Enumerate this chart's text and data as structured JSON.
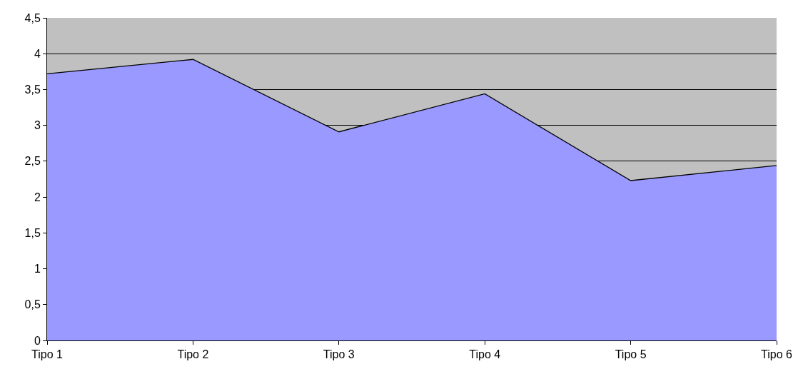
{
  "chart_data": {
    "type": "area",
    "categories": [
      "Tipo 1",
      "Tipo 2",
      "Tipo 3",
      "Tipo 4",
      "Tipo 5",
      "Tipo 6"
    ],
    "series": [
      {
        "color": "#9999ff",
        "values": [
          3.72,
          3.92,
          2.91,
          3.44,
          2.23,
          2.44
        ]
      }
    ],
    "ylim": [
      0,
      4.5
    ],
    "yticks": [
      0,
      {
        "value": 0.5,
        "label": "0,5"
      },
      1,
      {
        "value": 1.5,
        "label": "1,5"
      },
      2,
      {
        "value": 2.5,
        "label": "2,5"
      },
      3,
      {
        "value": 3.5,
        "label": "3,5"
      },
      4,
      {
        "value": 4.5,
        "label": "4,5"
      }
    ],
    "grid": "y"
  }
}
